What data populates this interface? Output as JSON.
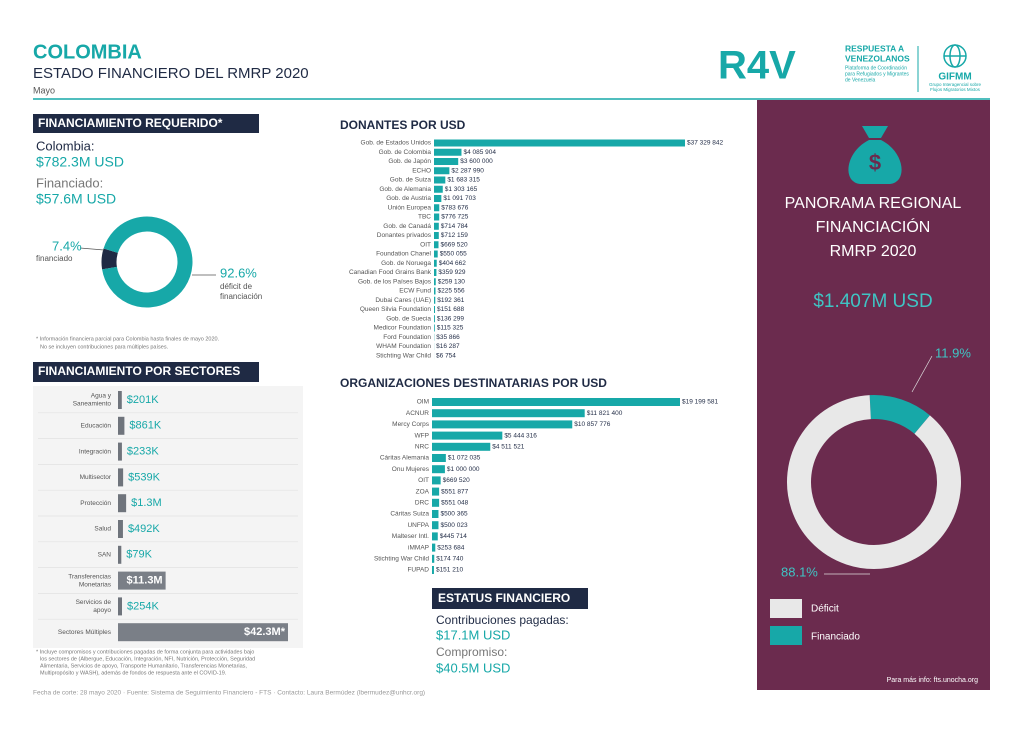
{
  "header": {
    "title": "COLOMBIA",
    "subtitle": "ESTADO FINANCIERO DEL RMRP 2020",
    "month": "Mayo",
    "logo_r4v": "R4V",
    "logo_lines": [
      "RESPUESTA A",
      "VENEZOLANOS"
    ],
    "logo_small": [
      "Plataforma de Coordinación",
      "para Refugiados y Migrantes",
      "de Venezuela"
    ],
    "logo_gifmm": "GIFMM",
    "logo_gifmm_small": [
      "Grupo Interagencial sobre",
      "Flujos Migratorios Mixtos"
    ]
  },
  "requerido": {
    "heading": "FINANCIAMIENTO REQUERIDO*",
    "country_label": "Colombia:",
    "required": "$782.3M USD",
    "funded_label": "Financiado:",
    "funded": "$57.6M USD",
    "donut": {
      "values": [
        7.4,
        92.6
      ],
      "value_labels": [
        "7.4%",
        "92.6%"
      ],
      "labels": [
        [
          "financiado"
        ],
        [
          "déficit de",
          "financiación"
        ]
      ],
      "colors": [
        "#1f2a44",
        "#17a8a8"
      ]
    },
    "note": [
      "* Información financiera parcial para Colombia hasta finales de mayo 2020.",
      "No se incluyen contribuciones para múltiples países."
    ]
  },
  "sectores": {
    "heading": "FINANCIAMIENTO POR SECTORES",
    "names": [
      [
        "Agua y",
        "Saneamiento"
      ],
      [
        "Educación"
      ],
      [
        "Integración"
      ],
      [
        "Multisector"
      ],
      [
        "Protección"
      ],
      [
        "Salud"
      ],
      [
        "SAN"
      ],
      [
        "Transferencias",
        "Monetarias"
      ],
      [
        "Servicios de",
        "apoyo"
      ],
      [
        "Sectores Múltiples"
      ]
    ],
    "values": [
      201000,
      861000,
      233000,
      539000,
      1300000,
      492000,
      79000,
      11300000,
      254000,
      42300000
    ],
    "value_labels": [
      "$201K",
      "$861K",
      "$233K",
      "$539K",
      "$1.3M",
      "$492K",
      "$79K",
      "$11.3M",
      "$254K",
      "$42.3M*"
    ],
    "note": [
      "* Incluye compromisos y contribuciones pagadas de forma conjunta para actividades bajo",
      "los sectores de (Albergue, Educación, Integración, NFI, Nutrición, Protección, Seguridad",
      "Alimentaria, Servicios de apoyo, Transporte Humanitario, Transferencias Monetarias,",
      "Multipropósito y WASH), además de fondos de respuesta ante el COVID-19."
    ]
  },
  "donantes": {
    "heading": "DONANTES POR USD",
    "names": [
      "Gob. de Estados Unidos",
      "Gob. de Colombia",
      "Gob. de Japón",
      "ECHO",
      "Gob. de Suiza",
      "Gob. de Alemania",
      "Gob. de Austria",
      "Unión Europea",
      "TBC",
      "Gob. de Canadá",
      "Donantes privados",
      "OIT",
      "Foundation Chanel",
      "Gob. de Noruega",
      "Canadian Food Grains Bank",
      "Gob. de los Países Bajos",
      "ECW Fund",
      "Dubai Cares (UAE)",
      "Queen Silvia Foundation",
      "Gob. de Suecia",
      "Medicor Foundation",
      "Ford Foundation",
      "WHAM Foundation",
      "Stichting War Child"
    ],
    "values": [
      37329842,
      4085904,
      3600000,
      2287990,
      1683315,
      1303165,
      1091703,
      783676,
      776725,
      714784,
      712159,
      669520,
      550055,
      404662,
      359929,
      259130,
      225556,
      192361,
      151688,
      136299,
      115325,
      35866,
      16287,
      6754
    ],
    "value_labels": [
      "$37 329 842",
      "$4 085 904",
      "$3 600 000",
      "$2 287 990",
      "$1 683 315",
      "$1 303 165",
      "$1 091 703",
      "$783 676",
      "$776 725",
      "$714 784",
      "$712 159",
      "$669 520",
      "$550 055",
      "$404 662",
      "$359 929",
      "$259 130",
      "$225 556",
      "$192 361",
      "$151 688",
      "$136 299",
      "$115 325",
      "$35 866",
      "$16 287",
      "$6 754"
    ]
  },
  "organizaciones": {
    "heading": "ORGANIZACIONES DESTINATARIAS POR USD",
    "names": [
      "OIM",
      "ACNUR",
      "Mercy Corps",
      "WFP",
      "NRC",
      "Cáritas Alemania",
      "Onu Mujeres",
      "OIT",
      "ZOA",
      "DRC",
      "Cáritas Suiza",
      "UNFPA",
      "Malteser Intl.",
      "iMMAP",
      "Stichting War Child",
      "FUPAD"
    ],
    "values": [
      19199581,
      11821400,
      10857776,
      5444316,
      4511521,
      1072035,
      1000000,
      669520,
      551877,
      551048,
      500365,
      500023,
      445714,
      253684,
      174740,
      151210
    ],
    "value_labels": [
      "$19 199 581",
      "$11 821 400",
      "$10 857 776",
      "$5 444 316",
      "$4 511 521",
      "$1 072 035",
      "$1 000 000",
      "$669 520",
      "$551 877",
      "$551 048",
      "$500 365",
      "$500 023",
      "$445 714",
      "$253 684",
      "$174 740",
      "$151 210"
    ]
  },
  "estatus": {
    "heading": "ESTATUS FINANCIERO",
    "paid_label": "Contribuciones pagadas:",
    "paid": "$17.1M USD",
    "pledge_label": "Compromiso:",
    "pledge": "$40.5M USD"
  },
  "regional": {
    "title": [
      "PANORAMA REGIONAL",
      "FINANCIACIÓN",
      "RMRP 2020"
    ],
    "amount": "$1.407M USD",
    "donut": {
      "values": [
        11.9,
        88.1
      ],
      "value_labels": [
        "11.9%",
        "88.1%"
      ],
      "colors": [
        "#17a8a8",
        "#e8e8e8"
      ]
    },
    "legend": [
      "Déficit",
      "Financiado"
    ],
    "more_info": "Para más info: fts.unocha.org"
  },
  "footer": "Fecha de corte: 28 mayo 2020 · Fuente: Sistema de Seguimiento Financiero - FTS · Contacto: Laura Bermúdez (lbermudez@unhcr.org)"
}
